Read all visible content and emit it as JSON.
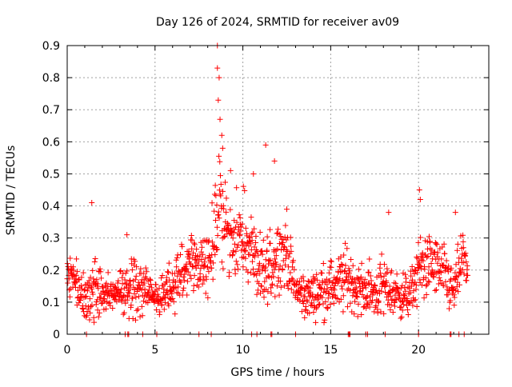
{
  "chart_data": {
    "type": "scatter",
    "title": "Day 126 of 2024, SRMTID for receiver av09",
    "xlabel": "GPS time / hours",
    "ylabel": "SRMTID / TECUs",
    "xlim": [
      0,
      24
    ],
    "ylim": [
      0,
      0.9
    ],
    "x_ticks": [
      0,
      5,
      10,
      15,
      20
    ],
    "y_ticks": [
      0,
      0.1,
      0.2,
      0.3,
      0.4,
      0.5,
      0.6,
      0.7,
      0.8,
      0.9
    ],
    "x_tick_labels": [
      "0",
      "5",
      "10",
      "15",
      "20"
    ],
    "y_tick_labels": [
      "0",
      "0.1",
      "0.2",
      "0.3",
      "0.4",
      "0.5",
      "0.6",
      "0.7",
      "0.8",
      "0.9"
    ],
    "grid": true,
    "marker": "+",
    "series": [
      {
        "name": "SRMTID",
        "color": "#ff0000",
        "envelope": {
          "x": [
            0.0,
            0.5,
            1.0,
            1.5,
            2.0,
            2.5,
            3.0,
            3.5,
            4.0,
            4.5,
            5.0,
            5.5,
            6.0,
            6.5,
            7.0,
            7.5,
            8.0,
            8.25,
            8.5,
            8.75,
            9.0,
            9.5,
            10.0,
            10.5,
            11.0,
            11.5,
            12.0,
            12.5,
            13.0,
            13.5,
            14.0,
            14.5,
            15.0,
            15.5,
            16.0,
            16.5,
            17.0,
            17.5,
            18.0,
            18.5,
            19.0,
            19.5,
            20.0,
            20.5,
            21.0,
            21.5,
            22.0,
            22.5,
            22.8
          ],
          "center": [
            0.19,
            0.17,
            0.1,
            0.15,
            0.14,
            0.12,
            0.13,
            0.15,
            0.16,
            0.14,
            0.12,
            0.12,
            0.15,
            0.19,
            0.21,
            0.22,
            0.22,
            0.27,
            0.38,
            0.4,
            0.33,
            0.31,
            0.29,
            0.27,
            0.17,
            0.2,
            0.26,
            0.25,
            0.14,
            0.12,
            0.12,
            0.14,
            0.15,
            0.16,
            0.18,
            0.14,
            0.14,
            0.13,
            0.15,
            0.13,
            0.12,
            0.12,
            0.2,
            0.22,
            0.21,
            0.18,
            0.13,
            0.24,
            0.2
          ],
          "spread": [
            0.04,
            0.05,
            0.05,
            0.09,
            0.05,
            0.04,
            0.04,
            0.06,
            0.08,
            0.05,
            0.04,
            0.05,
            0.06,
            0.07,
            0.08,
            0.07,
            0.07,
            0.1,
            0.15,
            0.12,
            0.1,
            0.09,
            0.1,
            0.09,
            0.08,
            0.1,
            0.08,
            0.07,
            0.05,
            0.05,
            0.05,
            0.06,
            0.06,
            0.07,
            0.07,
            0.06,
            0.06,
            0.06,
            0.07,
            0.06,
            0.05,
            0.05,
            0.08,
            0.07,
            0.07,
            0.07,
            0.05,
            0.07,
            0.05
          ]
        },
        "peaks": [
          {
            "x": 1.4,
            "y": 0.41
          },
          {
            "x": 3.4,
            "y": 0.31
          },
          {
            "x": 8.55,
            "y": 0.9
          },
          {
            "x": 8.55,
            "y": 0.83
          },
          {
            "x": 8.65,
            "y": 0.8
          },
          {
            "x": 8.6,
            "y": 0.73
          },
          {
            "x": 8.7,
            "y": 0.67
          },
          {
            "x": 8.8,
            "y": 0.62
          },
          {
            "x": 8.85,
            "y": 0.58
          },
          {
            "x": 9.3,
            "y": 0.51
          },
          {
            "x": 11.3,
            "y": 0.59
          },
          {
            "x": 11.8,
            "y": 0.54
          },
          {
            "x": 10.6,
            "y": 0.5
          },
          {
            "x": 12.5,
            "y": 0.39
          },
          {
            "x": 18.3,
            "y": 0.38
          },
          {
            "x": 20.05,
            "y": 0.45
          },
          {
            "x": 20.1,
            "y": 0.42
          },
          {
            "x": 22.1,
            "y": 0.38
          }
        ],
        "zero_points": [
          1.1,
          3.3,
          3.45,
          3.5,
          4.3,
          5.1,
          7.5,
          8.2,
          10.5,
          10.8,
          11.6,
          11.65,
          13.0,
          16.0,
          16.05,
          16.1,
          17.0,
          17.1,
          18.1,
          20.0,
          21.8,
          21.85,
          22.3,
          22.6
        ]
      }
    ]
  }
}
